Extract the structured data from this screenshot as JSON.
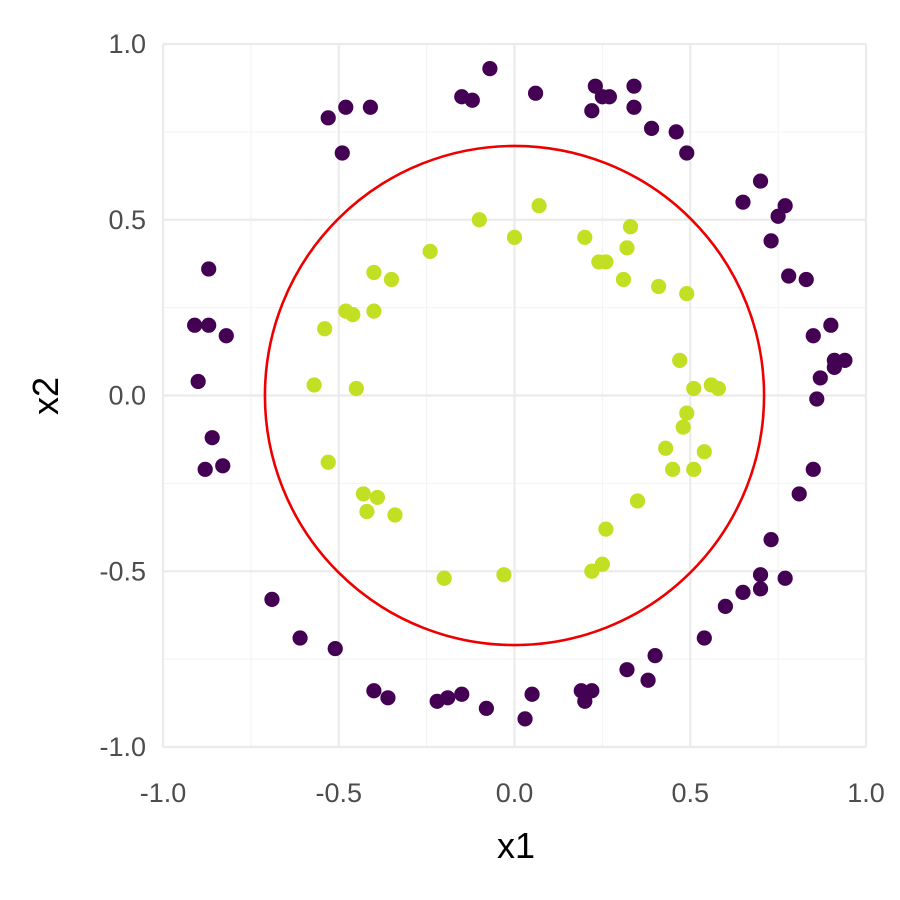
{
  "chart_data": {
    "type": "scatter",
    "title": "",
    "xlabel": "x1",
    "ylabel": "x2",
    "xlim": [
      -1.0,
      1.0
    ],
    "ylim": [
      -1.0,
      1.0
    ],
    "xticks": [
      "-1.0",
      "-0.5",
      "0.0",
      "0.5",
      "1.0"
    ],
    "yticks": [
      "-1.0",
      "-0.5",
      "0.0",
      "0.5",
      "1.0"
    ],
    "grid": true,
    "legend": "none",
    "boundary": {
      "shape": "circle",
      "center": [
        0,
        0
      ],
      "radius": 0.71,
      "color": "#ee0000"
    },
    "series": [
      {
        "color": "#440154",
        "points": [
          [
            -0.53,
            0.79
          ],
          [
            -0.48,
            0.82
          ],
          [
            -0.41,
            0.82
          ],
          [
            -0.49,
            0.69
          ],
          [
            -0.15,
            0.85
          ],
          [
            -0.12,
            0.84
          ],
          [
            -0.07,
            0.93
          ],
          [
            0.06,
            0.86
          ],
          [
            0.23,
            0.88
          ],
          [
            0.25,
            0.85
          ],
          [
            0.27,
            0.85
          ],
          [
            0.22,
            0.81
          ],
          [
            0.34,
            0.88
          ],
          [
            0.34,
            0.82
          ],
          [
            0.39,
            0.76
          ],
          [
            0.46,
            0.75
          ],
          [
            0.49,
            0.69
          ],
          [
            0.65,
            0.55
          ],
          [
            0.7,
            0.61
          ],
          [
            0.77,
            0.54
          ],
          [
            0.75,
            0.51
          ],
          [
            0.73,
            0.44
          ],
          [
            0.78,
            0.34
          ],
          [
            0.83,
            0.33
          ],
          [
            0.9,
            0.2
          ],
          [
            0.85,
            0.17
          ],
          [
            0.91,
            0.1
          ],
          [
            0.94,
            0.1
          ],
          [
            0.91,
            0.08
          ],
          [
            0.87,
            0.05
          ],
          [
            0.86,
            -0.01
          ],
          [
            0.85,
            -0.21
          ],
          [
            0.81,
            -0.28
          ],
          [
            0.73,
            -0.41
          ],
          [
            0.7,
            -0.51
          ],
          [
            0.77,
            -0.52
          ],
          [
            0.7,
            -0.55
          ],
          [
            0.65,
            -0.56
          ],
          [
            0.6,
            -0.6
          ],
          [
            0.54,
            -0.69
          ],
          [
            0.4,
            -0.74
          ],
          [
            0.32,
            -0.78
          ],
          [
            0.38,
            -0.81
          ],
          [
            0.19,
            -0.84
          ],
          [
            0.22,
            -0.84
          ],
          [
            0.2,
            -0.87
          ],
          [
            0.05,
            -0.85
          ],
          [
            0.03,
            -0.92
          ],
          [
            -0.08,
            -0.89
          ],
          [
            -0.15,
            -0.85
          ],
          [
            -0.19,
            -0.86
          ],
          [
            -0.22,
            -0.87
          ],
          [
            -0.36,
            -0.86
          ],
          [
            -0.4,
            -0.84
          ],
          [
            -0.51,
            -0.72
          ],
          [
            -0.61,
            -0.69
          ],
          [
            -0.69,
            -0.58
          ],
          [
            -0.91,
            0.2
          ],
          [
            -0.87,
            0.2
          ],
          [
            -0.87,
            0.36
          ],
          [
            -0.82,
            0.17
          ],
          [
            -0.9,
            0.04
          ],
          [
            -0.86,
            -0.12
          ],
          [
            -0.88,
            -0.21
          ],
          [
            -0.83,
            -0.2
          ]
        ]
      },
      {
        "color": "#c2df23",
        "points": [
          [
            -0.1,
            0.5
          ],
          [
            0.07,
            0.54
          ],
          [
            0.0,
            0.45
          ],
          [
            0.2,
            0.45
          ],
          [
            0.33,
            0.48
          ],
          [
            0.32,
            0.42
          ],
          [
            0.24,
            0.38
          ],
          [
            0.26,
            0.38
          ],
          [
            0.31,
            0.33
          ],
          [
            0.41,
            0.31
          ],
          [
            0.49,
            0.29
          ],
          [
            -0.24,
            0.41
          ],
          [
            -0.4,
            0.35
          ],
          [
            -0.35,
            0.33
          ],
          [
            -0.48,
            0.24
          ],
          [
            -0.46,
            0.23
          ],
          [
            -0.4,
            0.24
          ],
          [
            -0.54,
            0.19
          ],
          [
            -0.57,
            0.03
          ],
          [
            -0.45,
            0.02
          ],
          [
            0.47,
            0.1
          ],
          [
            0.51,
            0.02
          ],
          [
            0.56,
            0.03
          ],
          [
            0.58,
            0.02
          ],
          [
            0.49,
            -0.05
          ],
          [
            0.48,
            -0.09
          ],
          [
            0.43,
            -0.15
          ],
          [
            0.45,
            -0.21
          ],
          [
            0.51,
            -0.21
          ],
          [
            0.54,
            -0.16
          ],
          [
            -0.53,
            -0.19
          ],
          [
            -0.43,
            -0.28
          ],
          [
            -0.39,
            -0.29
          ],
          [
            -0.42,
            -0.33
          ],
          [
            -0.34,
            -0.34
          ],
          [
            0.35,
            -0.3
          ],
          [
            0.26,
            -0.38
          ],
          [
            0.25,
            -0.48
          ],
          [
            0.22,
            -0.5
          ],
          [
            -0.2,
            -0.52
          ],
          [
            -0.03,
            -0.51
          ]
        ]
      }
    ]
  }
}
